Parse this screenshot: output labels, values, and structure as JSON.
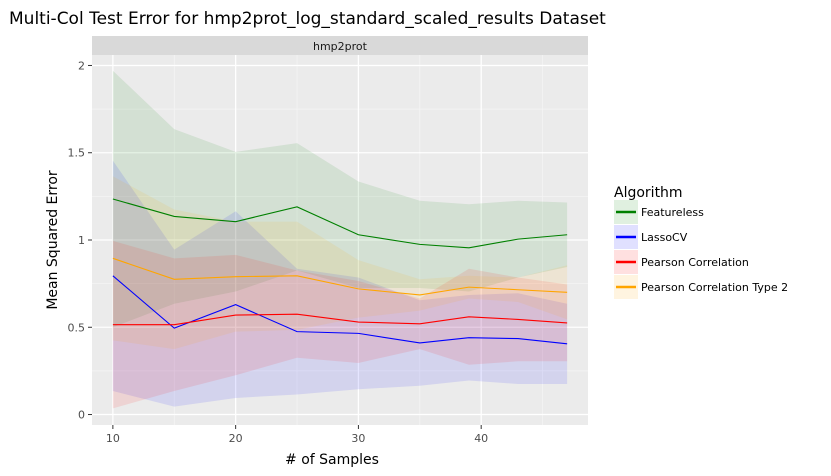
{
  "chart_data": {
    "type": "line",
    "title": "Multi-Col Test Error for hmp2prot_log_standard_scaled_results Dataset",
    "facet": "hmp2prot",
    "xlabel": "# of Samples",
    "ylabel": "Mean Squared Error",
    "xlim": [
      8.3,
      48.7
    ],
    "ylim": [
      -0.06,
      2.06
    ],
    "x_ticks": [
      10,
      20,
      30,
      40
    ],
    "y_ticks": [
      0,
      0.5,
      1,
      1.5,
      2
    ],
    "y_tick_labels": [
      "0",
      "0.5",
      "1",
      "1.5",
      "2"
    ],
    "grid": true,
    "legend": {
      "title": "Algorithm",
      "position": "right"
    },
    "x": [
      10,
      15,
      20,
      25,
      30,
      35,
      39,
      43,
      47
    ],
    "series": [
      {
        "name": "Featureless",
        "color": "#008000",
        "values": [
          1.235,
          1.135,
          1.105,
          1.19,
          1.03,
          0.975,
          0.955,
          1.005,
          1.03
        ],
        "upper": [
          1.97,
          1.635,
          1.505,
          1.555,
          1.335,
          1.225,
          1.205,
          1.225,
          1.215
        ],
        "lower": [
          0.5,
          0.635,
          0.705,
          0.825,
          0.725,
          0.725,
          0.705,
          0.785,
          0.845
        ]
      },
      {
        "name": "LassoCV",
        "color": "#0000ff",
        "values": [
          0.795,
          0.495,
          0.63,
          0.475,
          0.465,
          0.41,
          0.44,
          0.435,
          0.405
        ],
        "upper": [
          1.455,
          0.945,
          1.165,
          0.835,
          0.785,
          0.655,
          0.685,
          0.695,
          0.635
        ],
        "lower": [
          0.135,
          0.045,
          0.095,
          0.115,
          0.145,
          0.165,
          0.195,
          0.175,
          0.175
        ]
      },
      {
        "name": "Pearson Correlation",
        "color": "#ff0000",
        "values": [
          0.515,
          0.515,
          0.57,
          0.575,
          0.53,
          0.52,
          0.56,
          0.545,
          0.525
        ],
        "upper": [
          0.995,
          0.895,
          0.915,
          0.825,
          0.765,
          0.665,
          0.835,
          0.785,
          0.745
        ],
        "lower": [
          0.035,
          0.135,
          0.225,
          0.325,
          0.295,
          0.375,
          0.285,
          0.305,
          0.305
        ]
      },
      {
        "name": "Pearson Correlation Type 2",
        "color": "#ffa500",
        "values": [
          0.895,
          0.775,
          0.79,
          0.795,
          0.72,
          0.685,
          0.73,
          0.715,
          0.7
        ],
        "upper": [
          1.365,
          1.175,
          1.105,
          1.105,
          0.885,
          0.775,
          0.795,
          0.785,
          0.855
        ],
        "lower": [
          0.425,
          0.375,
          0.475,
          0.485,
          0.555,
          0.595,
          0.665,
          0.645,
          0.545
        ]
      }
    ]
  }
}
